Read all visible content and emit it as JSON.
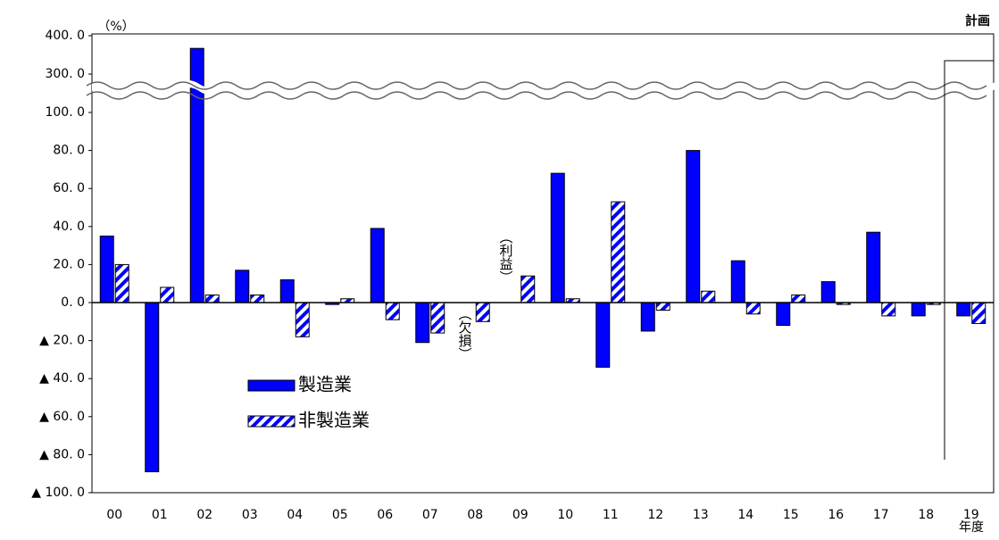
{
  "chart_data": {
    "type": "bar",
    "y_label": "（%）",
    "x_label": "年度",
    "plan_label": "計画",
    "annotations": [
      "（利益）",
      "（欠損）"
    ],
    "categories": [
      "00",
      "01",
      "02",
      "03",
      "04",
      "05",
      "06",
      "07",
      "08",
      "09",
      "10",
      "11",
      "12",
      "13",
      "14",
      "15",
      "16",
      "17",
      "18",
      "19"
    ],
    "series": [
      {
        "name": "製造業",
        "color": "#0000ff",
        "hatch": false,
        "values": [
          35,
          -89,
          367,
          17,
          12,
          -1,
          39,
          -21,
          null,
          null,
          68,
          -34,
          -15,
          80,
          22,
          -12,
          11,
          37,
          -7,
          -7
        ]
      },
      {
        "name": "非製造業",
        "color": "#0000ff",
        "hatch": true,
        "values": [
          20,
          8,
          4,
          4,
          -18,
          2,
          -9,
          -16,
          -10,
          14,
          2,
          53,
          -4,
          6,
          -6,
          4,
          -1,
          -7,
          -1,
          -11
        ]
      }
    ],
    "ylim": [
      -100,
      400
    ],
    "y_break": [
      100,
      300
    ],
    "yticks": [
      {
        "value": 400,
        "label": "400. 0"
      },
      {
        "value": 300,
        "label": "300. 0"
      },
      {
        "value": 100,
        "label": "100. 0"
      },
      {
        "value": 80,
        "label": "80. 0"
      },
      {
        "value": 60,
        "label": "60. 0"
      },
      {
        "value": 40,
        "label": "40. 0"
      },
      {
        "value": 20,
        "label": "20. 0"
      },
      {
        "value": 0,
        "label": "0. 0"
      },
      {
        "value": -20,
        "label": "▲ 20. 0"
      },
      {
        "value": -40,
        "label": "▲ 40. 0"
      },
      {
        "value": -60,
        "label": "▲ 60. 0"
      },
      {
        "value": -80,
        "label": "▲ 80. 0"
      },
      {
        "value": -100,
        "label": "▲ 100. 0"
      }
    ]
  }
}
